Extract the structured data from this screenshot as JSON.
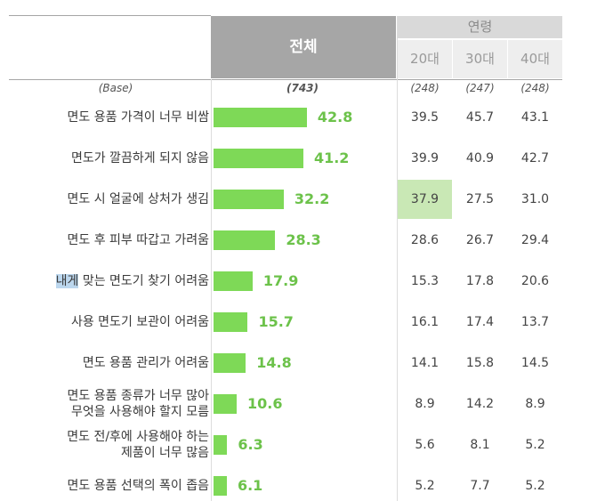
{
  "header": {
    "total_label": "전체",
    "age_group_label": "연령",
    "age_columns": [
      "20대",
      "30대",
      "40대"
    ]
  },
  "base_row": {
    "label": "(Base)",
    "total": "(743)",
    "ages": [
      "(248)",
      "(247)",
      "(248)"
    ]
  },
  "highlight_color": "#c9e8b5",
  "bar_color": "#7ed957",
  "value_color": "#6cc24a",
  "rows": [
    {
      "label": [
        "면도 용품 가격이 너무 비쌈"
      ],
      "total": "42.8",
      "ages": [
        "39.5",
        "45.7",
        "43.1"
      ]
    },
    {
      "label": [
        "면도가 깔끔하게 되지 않음"
      ],
      "total": "41.2",
      "ages": [
        "39.9",
        "40.9",
        "42.7"
      ]
    },
    {
      "label": [
        "면도 시 얼굴에 상처가 생김"
      ],
      "total": "32.2",
      "ages": [
        "37.9",
        "27.5",
        "31.0"
      ],
      "highlight_age_index": 0
    },
    {
      "label": [
        "면도 후 피부 따갑고 가려움"
      ],
      "total": "28.3",
      "ages": [
        "28.6",
        "26.7",
        "29.4"
      ]
    },
    {
      "label": [
        "내게 맞는 면도기 찾기 어려움"
      ],
      "total": "17.9",
      "ages": [
        "15.3",
        "17.8",
        "20.6"
      ]
    },
    {
      "label": [
        "사용 면도기 보관이 어려움"
      ],
      "total": "15.7",
      "ages": [
        "16.1",
        "17.4",
        "13.7"
      ]
    },
    {
      "label": [
        "면도 용품 관리가 어려움"
      ],
      "total": "14.8",
      "ages": [
        "14.1",
        "15.8",
        "14.5"
      ]
    },
    {
      "label": [
        "면도 용품 종류가 너무 많아",
        "무엇을 사용해야 할지 모름"
      ],
      "total": "10.6",
      "ages": [
        "8.9",
        "14.2",
        "8.9"
      ]
    },
    {
      "label": [
        "면도 전/후에 사용해야 하는",
        "제품이 너무 많음"
      ],
      "total": "6.3",
      "ages": [
        "5.6",
        "8.1",
        "5.2"
      ]
    },
    {
      "label": [
        "면도 용품 선택의 폭이 좁음"
      ],
      "total": "6.1",
      "ages": [
        "5.2",
        "7.7",
        "5.2"
      ]
    }
  ],
  "chart_data": {
    "type": "bar",
    "orientation": "horizontal",
    "categories": [
      "면도 용품 가격이 너무 비쌈",
      "면도가 깔끔하게 되지 않음",
      "면도 시 얼굴에 상처가 생김",
      "면도 후 피부 따갑고 가려움",
      "내게 맞는 면도기 찾기 어려움",
      "사용 면도기 보관이 어려움",
      "면도 용품 관리가 어려움",
      "면도 용품 종류가 너무 많아 무엇을 사용해야 할지 모름",
      "면도 전/후에 사용해야 하는 제품이 너무 많음",
      "면도 용품 선택의 폭이 좁음"
    ],
    "series": [
      {
        "name": "전체",
        "values": [
          42.8,
          41.2,
          32.2,
          28.3,
          17.9,
          15.7,
          14.8,
          10.6,
          6.3,
          6.1
        ]
      }
    ],
    "table_columns": [
      "20대",
      "30대",
      "40대"
    ],
    "table_values": [
      [
        39.5,
        45.7,
        43.1
      ],
      [
        39.9,
        40.9,
        42.7
      ],
      [
        37.9,
        27.5,
        31.0
      ],
      [
        28.6,
        26.7,
        29.4
      ],
      [
        15.3,
        17.8,
        20.6
      ],
      [
        16.1,
        17.4,
        13.7
      ],
      [
        14.1,
        15.8,
        14.5
      ],
      [
        8.9,
        14.2,
        8.9
      ],
      [
        5.6,
        8.1,
        5.2
      ],
      [
        5.2,
        7.7,
        5.2
      ]
    ],
    "base_n": {
      "total": 743,
      "20대": 248,
      "30대": 247,
      "40대": 248
    },
    "grid": false
  }
}
